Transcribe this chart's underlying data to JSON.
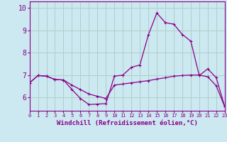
{
  "xlabel": "Windchill (Refroidissement éolien,°C)",
  "background_color": "#cce8f0",
  "grid_color": "#b0cfc8",
  "line_color": "#880088",
  "x_values": [
    0,
    1,
    2,
    3,
    4,
    5,
    6,
    7,
    8,
    9,
    10,
    11,
    12,
    13,
    14,
    15,
    16,
    17,
    18,
    19,
    20,
    21,
    22,
    23
  ],
  "curve1_y": [
    6.65,
    6.98,
    6.95,
    6.8,
    6.78,
    6.35,
    5.95,
    5.68,
    5.7,
    5.72,
    6.95,
    7.0,
    7.35,
    7.45,
    8.8,
    9.78,
    9.35,
    9.28,
    8.82,
    8.52,
    6.98,
    7.28,
    6.88,
    5.58
  ],
  "curve2_y": [
    6.65,
    6.98,
    6.95,
    6.8,
    6.78,
    6.55,
    6.35,
    6.15,
    6.05,
    5.95,
    6.55,
    6.6,
    6.65,
    6.7,
    6.75,
    6.82,
    6.88,
    6.95,
    6.98,
    7.0,
    7.0,
    6.92,
    6.52,
    5.58
  ],
  "ylim": [
    5.4,
    10.3
  ],
  "xlim": [
    0,
    23
  ],
  "yticks": [
    6,
    7,
    8,
    9,
    10
  ],
  "xtick_labels": [
    "0",
    "1",
    "2",
    "3",
    "4",
    "5",
    "6",
    "7",
    "8",
    "9",
    "10",
    "11",
    "12",
    "13",
    "14",
    "15",
    "16",
    "17",
    "18",
    "19",
    "20",
    "21",
    "22",
    "23"
  ],
  "fontsize_xlabel": 6.5,
  "fontsize_yticks": 7,
  "fontsize_xticks": 5
}
